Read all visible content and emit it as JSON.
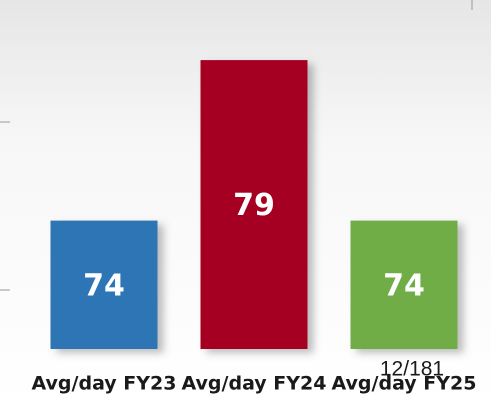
{
  "chart_data": {
    "type": "bar",
    "categories": [
      "Avg/day FY23",
      "Avg/day FY24",
      "Avg/day FY25"
    ],
    "values": [
      74,
      79,
      74
    ],
    "colors": [
      "#2e75b6",
      "#a50021",
      "#70ad47"
    ],
    "ylim": [
      70,
      80
    ],
    "annotation": "12/181"
  }
}
